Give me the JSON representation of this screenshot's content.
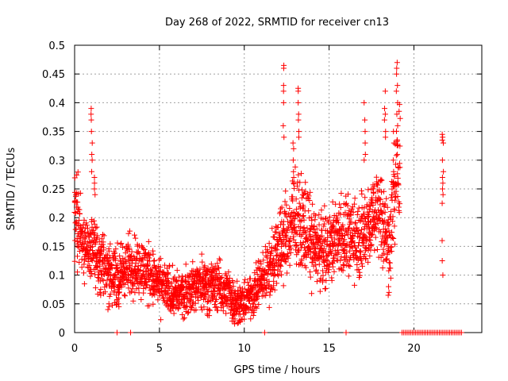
{
  "chart_data": {
    "type": "scatter",
    "title": "Day 268 of 2022, SRMTID for receiver cn13",
    "xlabel": "GPS time / hours",
    "ylabel": "SRMTID / TECUs",
    "xlim": [
      0,
      24
    ],
    "ylim": [
      0,
      0.5
    ],
    "xticks": [
      {
        "value": 0,
        "label": "0"
      },
      {
        "value": 5,
        "label": "5"
      },
      {
        "value": 10,
        "label": "10"
      },
      {
        "value": 15,
        "label": "15"
      },
      {
        "value": 20,
        "label": "20"
      }
    ],
    "yticks": [
      {
        "value": 0,
        "label": "0"
      },
      {
        "value": 0.05,
        "label": "0.05"
      },
      {
        "value": 0.1,
        "label": "0.1"
      },
      {
        "value": 0.15,
        "label": "0.15"
      },
      {
        "value": 0.2,
        "label": "0.2"
      },
      {
        "value": 0.25,
        "label": "0.25"
      },
      {
        "value": 0.3,
        "label": "0.3"
      },
      {
        "value": 0.35,
        "label": "0.35"
      },
      {
        "value": 0.4,
        "label": "0.4"
      },
      {
        "value": 0.45,
        "label": "0.45"
      },
      {
        "value": 0.5,
        "label": "0.5"
      }
    ],
    "grid": true,
    "marker": "+",
    "series_color": "#ff0000",
    "trend": [
      [
        0.0,
        0.21
      ],
      [
        0.3,
        0.18
      ],
      [
        0.7,
        0.15
      ],
      [
        1.0,
        0.14
      ],
      [
        1.5,
        0.13
      ],
      [
        2.0,
        0.11
      ],
      [
        2.5,
        0.1
      ],
      [
        3.0,
        0.11
      ],
      [
        3.5,
        0.12
      ],
      [
        4.0,
        0.11
      ],
      [
        4.5,
        0.1
      ],
      [
        5.0,
        0.08
      ],
      [
        5.5,
        0.075
      ],
      [
        6.0,
        0.065
      ],
      [
        6.5,
        0.07
      ],
      [
        7.0,
        0.08
      ],
      [
        7.5,
        0.085
      ],
      [
        8.0,
        0.085
      ],
      [
        8.5,
        0.08
      ],
      [
        9.0,
        0.07
      ],
      [
        9.5,
        0.055
      ],
      [
        10.0,
        0.05
      ],
      [
        10.5,
        0.07
      ],
      [
        11.0,
        0.09
      ],
      [
        11.5,
        0.11
      ],
      [
        12.0,
        0.15
      ],
      [
        12.5,
        0.17
      ],
      [
        13.0,
        0.19
      ],
      [
        13.5,
        0.19
      ],
      [
        14.0,
        0.16
      ],
      [
        14.5,
        0.14
      ],
      [
        15.0,
        0.15
      ],
      [
        15.5,
        0.17
      ],
      [
        16.0,
        0.17
      ],
      [
        16.5,
        0.16
      ],
      [
        17.0,
        0.17
      ],
      [
        17.5,
        0.2
      ],
      [
        18.0,
        0.22
      ],
      [
        18.5,
        0.15
      ],
      [
        19.0,
        0.27
      ],
      [
        19.2,
        0.3
      ]
    ],
    "spikes": [
      {
        "x": 1.0,
        "values": [
          0.39,
          0.38,
          0.37,
          0.35,
          0.33,
          0.31,
          0.3,
          0.28
        ]
      },
      {
        "x": 1.2,
        "values": [
          0.27,
          0.26,
          0.25,
          0.24
        ]
      },
      {
        "x": 12.3,
        "values": [
          0.465,
          0.46,
          0.43,
          0.42,
          0.4,
          0.36,
          0.34
        ]
      },
      {
        "x": 12.9,
        "values": [
          0.33,
          0.32,
          0.3,
          0.28,
          0.27,
          0.26
        ]
      },
      {
        "x": 13.2,
        "values": [
          0.425,
          0.42,
          0.4,
          0.38,
          0.37,
          0.35,
          0.34
        ]
      },
      {
        "x": 17.1,
        "values": [
          0.4,
          0.37,
          0.35,
          0.33,
          0.31,
          0.3
        ]
      },
      {
        "x": 18.3,
        "values": [
          0.42,
          0.39,
          0.38,
          0.37,
          0.35,
          0.34
        ]
      },
      {
        "x": 18.8,
        "values": [
          0.35,
          0.33,
          0.3,
          0.28,
          0.26
        ]
      },
      {
        "x": 19.0,
        "values": [
          0.47,
          0.46,
          0.45,
          0.43,
          0.42,
          0.4,
          0.38,
          0.36
        ]
      },
      {
        "x": 21.7,
        "values": [
          0.345,
          0.34,
          0.335,
          0.33,
          0.3,
          0.28,
          0.27,
          0.26,
          0.25,
          0.24,
          0.225,
          0.16,
          0.125,
          0.1
        ]
      }
    ],
    "dips": [
      {
        "x": 1.5,
        "values": [
          0.09,
          0.07,
          0.065
        ]
      },
      {
        "x": 2.0,
        "values": [
          0.05,
          0.045,
          0.04
        ]
      },
      {
        "x": 2.6,
        "values": [
          0.06,
          0.05,
          0.045
        ]
      },
      {
        "x": 9.3,
        "values": [
          0.03,
          0.025,
          0.02
        ]
      },
      {
        "x": 18.5,
        "values": [
          0.08,
          0.07,
          0.065
        ]
      }
    ],
    "zero_points_x": [
      2.5,
      3.3,
      11.2,
      16.0,
      19.3,
      19.4,
      19.5,
      19.6,
      19.7,
      19.8,
      19.9,
      20.0,
      20.1,
      20.2,
      20.3,
      20.4,
      20.5,
      20.6,
      20.7,
      20.8,
      20.9,
      21.0,
      21.1,
      21.2,
      21.3,
      21.4,
      21.5,
      21.6,
      21.7,
      21.8,
      21.9,
      22.0,
      22.1,
      22.2,
      22.3,
      22.4,
      22.5,
      22.6,
      22.7,
      22.8
    ]
  }
}
